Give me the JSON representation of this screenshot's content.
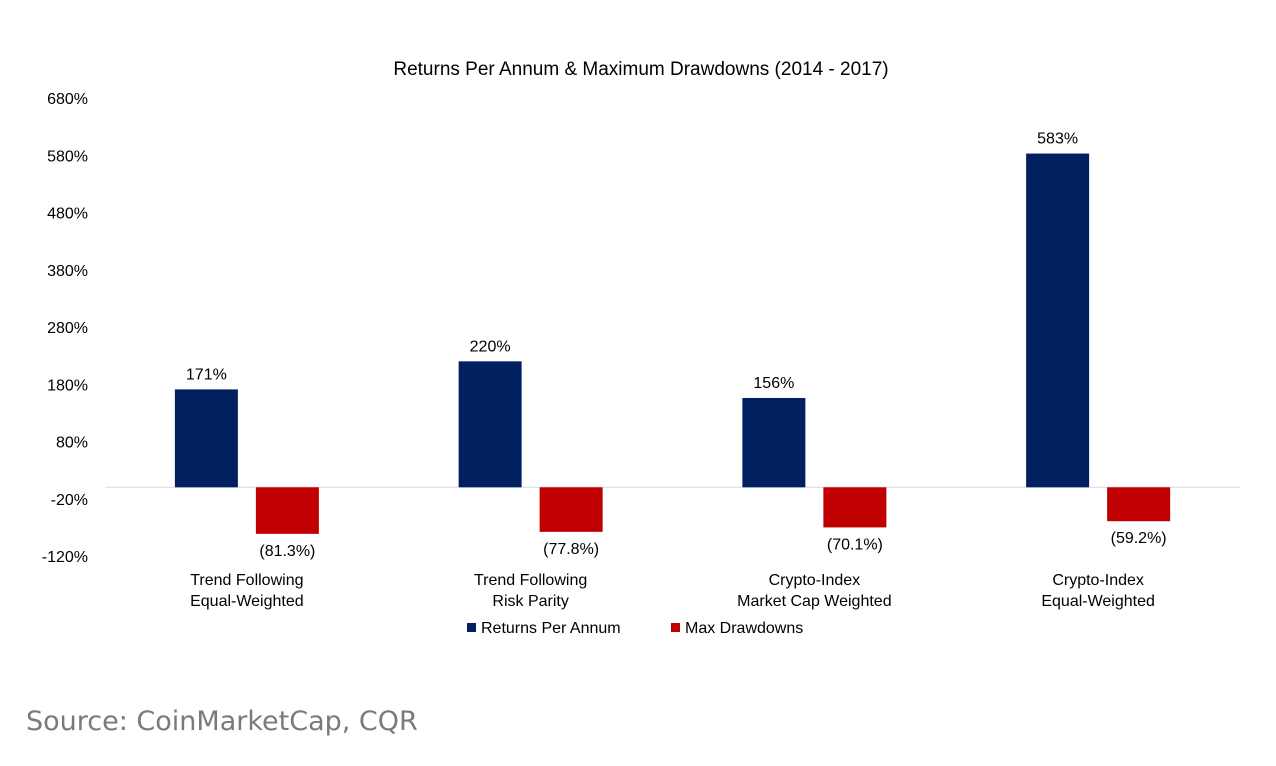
{
  "chart_data": {
    "type": "bar",
    "title": "Returns Per Annum & Maximum Drawdowns (2014 - 2017)",
    "categories": [
      [
        "Trend Following",
        "Equal-Weighted"
      ],
      [
        "Trend Following",
        "Risk Parity"
      ],
      [
        "Crypto-Index",
        "Market Cap Weighted"
      ],
      [
        "Crypto-Index",
        "Equal-Weighted"
      ]
    ],
    "series": [
      {
        "name": "Returns Per Annum",
        "color": "#002060",
        "values": [
          171,
          220,
          156,
          583
        ],
        "labels": [
          "171%",
          "220%",
          "156%",
          "583%"
        ]
      },
      {
        "name": "Max Drawdowns",
        "color": "#C00000",
        "values": [
          -81.3,
          -77.8,
          -70.1,
          -59.2
        ],
        "labels": [
          "(81.3%)",
          "(77.8%)",
          "(70.1%)",
          "(59.2%)"
        ]
      }
    ],
    "y_ticks": [
      680,
      580,
      480,
      380,
      280,
      180,
      80,
      -20,
      -120
    ],
    "y_tick_labels": [
      "680%",
      "580%",
      "480%",
      "380%",
      "280%",
      "180%",
      "80%",
      "-20%",
      "-120%"
    ],
    "ylim": [
      -120,
      680
    ],
    "xlabel": "",
    "ylabel": "",
    "grid": false,
    "legend_position": "bottom"
  },
  "source": "Source: CoinMarketCap, CQR"
}
